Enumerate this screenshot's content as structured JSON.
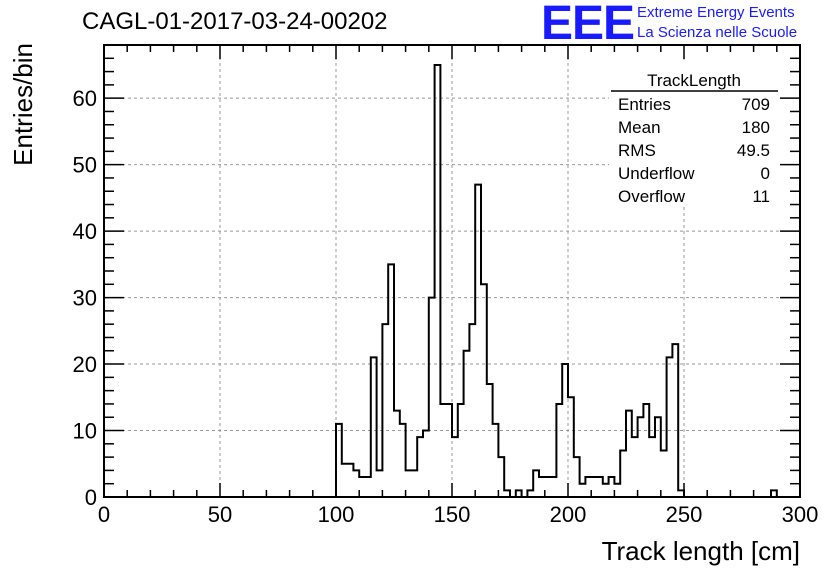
{
  "header": {
    "title": "CAGL-01-2017-03-24-00202",
    "logo_text": "EEE",
    "logo_line1": "Extreme Energy Events",
    "logo_line2": "La Scienza nelle Scuole",
    "logo_color": "#1a1aff"
  },
  "chart_data": {
    "type": "histogram",
    "title": "CAGL-01-2017-03-24-00202",
    "xlabel": "Track length [cm]",
    "ylabel": "Entries/bin",
    "xlim": [
      0,
      300
    ],
    "ylim": [
      0,
      68
    ],
    "grid": true,
    "bin_width": 2.5,
    "x_ticks": [
      0,
      50,
      100,
      150,
      200,
      250,
      300
    ],
    "y_ticks": [
      0,
      10,
      20,
      30,
      40,
      50,
      60
    ],
    "bins": [
      {
        "x": 100.0,
        "y": 11
      },
      {
        "x": 102.5,
        "y": 5
      },
      {
        "x": 105.0,
        "y": 5
      },
      {
        "x": 107.5,
        "y": 4
      },
      {
        "x": 110.0,
        "y": 3
      },
      {
        "x": 112.5,
        "y": 3
      },
      {
        "x": 115.0,
        "y": 21
      },
      {
        "x": 117.5,
        "y": 4
      },
      {
        "x": 120.0,
        "y": 26
      },
      {
        "x": 122.5,
        "y": 35
      },
      {
        "x": 125.0,
        "y": 13
      },
      {
        "x": 127.5,
        "y": 11
      },
      {
        "x": 130.0,
        "y": 4
      },
      {
        "x": 132.5,
        "y": 4
      },
      {
        "x": 135.0,
        "y": 9
      },
      {
        "x": 137.5,
        "y": 10
      },
      {
        "x": 140.0,
        "y": 30
      },
      {
        "x": 142.5,
        "y": 65
      },
      {
        "x": 145.0,
        "y": 14
      },
      {
        "x": 147.5,
        "y": 14
      },
      {
        "x": 150.0,
        "y": 9
      },
      {
        "x": 152.5,
        "y": 14
      },
      {
        "x": 155.0,
        "y": 22
      },
      {
        "x": 157.5,
        "y": 26
      },
      {
        "x": 160.0,
        "y": 47
      },
      {
        "x": 162.5,
        "y": 32
      },
      {
        "x": 165.0,
        "y": 17
      },
      {
        "x": 167.5,
        "y": 11
      },
      {
        "x": 170.0,
        "y": 6
      },
      {
        "x": 172.5,
        "y": 1
      },
      {
        "x": 175.0,
        "y": 0
      },
      {
        "x": 177.5,
        "y": 1
      },
      {
        "x": 180.0,
        "y": 0
      },
      {
        "x": 182.5,
        "y": 1
      },
      {
        "x": 185.0,
        "y": 4
      },
      {
        "x": 187.5,
        "y": 3
      },
      {
        "x": 190.0,
        "y": 3
      },
      {
        "x": 192.5,
        "y": 3
      },
      {
        "x": 195.0,
        "y": 14
      },
      {
        "x": 197.5,
        "y": 20
      },
      {
        "x": 200.0,
        "y": 15
      },
      {
        "x": 202.5,
        "y": 6
      },
      {
        "x": 205.0,
        "y": 2
      },
      {
        "x": 207.5,
        "y": 3
      },
      {
        "x": 210.0,
        "y": 3
      },
      {
        "x": 212.5,
        "y": 3
      },
      {
        "x": 215.0,
        "y": 2
      },
      {
        "x": 217.5,
        "y": 3
      },
      {
        "x": 220.0,
        "y": 2
      },
      {
        "x": 222.5,
        "y": 7
      },
      {
        "x": 225.0,
        "y": 13
      },
      {
        "x": 227.5,
        "y": 9
      },
      {
        "x": 230.0,
        "y": 12
      },
      {
        "x": 232.5,
        "y": 14
      },
      {
        "x": 235.0,
        "y": 9
      },
      {
        "x": 237.5,
        "y": 12
      },
      {
        "x": 240.0,
        "y": 7
      },
      {
        "x": 242.5,
        "y": 21
      },
      {
        "x": 245.0,
        "y": 23
      },
      {
        "x": 247.5,
        "y": 1
      },
      {
        "x": 250.0,
        "y": 0
      },
      {
        "x": 252.5,
        "y": 0
      },
      {
        "x": 255.0,
        "y": 0
      },
      {
        "x": 257.5,
        "y": 0
      },
      {
        "x": 260.0,
        "y": 0
      },
      {
        "x": 262.5,
        "y": 0
      },
      {
        "x": 265.0,
        "y": 0
      },
      {
        "x": 267.5,
        "y": 0
      },
      {
        "x": 270.0,
        "y": 0
      },
      {
        "x": 272.5,
        "y": 0
      },
      {
        "x": 275.0,
        "y": 0
      },
      {
        "x": 277.5,
        "y": 0
      },
      {
        "x": 280.0,
        "y": 0
      },
      {
        "x": 282.5,
        "y": 0
      },
      {
        "x": 285.0,
        "y": 0
      },
      {
        "x": 287.5,
        "y": 1
      }
    ],
    "stats": {
      "name": "TrackLength",
      "rows": [
        {
          "label": "Entries",
          "value": "709"
        },
        {
          "label": "Mean",
          "value": "180"
        },
        {
          "label": "RMS",
          "value": "49.5"
        },
        {
          "label": "Underflow",
          "value": "0"
        },
        {
          "label": "Overflow",
          "value": "11"
        }
      ]
    }
  }
}
